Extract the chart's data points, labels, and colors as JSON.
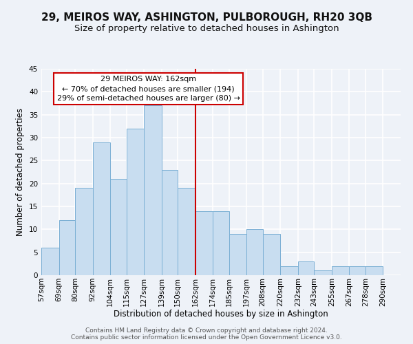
{
  "title": "29, MEIROS WAY, ASHINGTON, PULBOROUGH, RH20 3QB",
  "subtitle": "Size of property relative to detached houses in Ashington",
  "xlabel": "Distribution of detached houses by size in Ashington",
  "ylabel": "Number of detached properties",
  "bar_left_edges": [
    57,
    69,
    80,
    92,
    104,
    115,
    127,
    139,
    150,
    162,
    174,
    185,
    197,
    208,
    220,
    232,
    243,
    255,
    267,
    278
  ],
  "bar_heights": [
    6,
    12,
    19,
    29,
    21,
    32,
    37,
    23,
    19,
    14,
    14,
    9,
    10,
    9,
    2,
    3,
    1,
    2,
    2,
    2
  ],
  "bar_widths": [
    12,
    11,
    12,
    12,
    11,
    12,
    12,
    11,
    12,
    12,
    11,
    12,
    11,
    12,
    12,
    11,
    12,
    12,
    11,
    12
  ],
  "tick_labels": [
    "57sqm",
    "69sqm",
    "80sqm",
    "92sqm",
    "104sqm",
    "115sqm",
    "127sqm",
    "139sqm",
    "150sqm",
    "162sqm",
    "174sqm",
    "185sqm",
    "197sqm",
    "208sqm",
    "220sqm",
    "232sqm",
    "243sqm",
    "255sqm",
    "267sqm",
    "278sqm",
    "290sqm"
  ],
  "bar_color": "#c8ddf0",
  "bar_edge_color": "#7aafd4",
  "vline_x": 162,
  "vline_color": "#cc0000",
  "annotation_title": "29 MEIROS WAY: 162sqm",
  "annotation_line1": "← 70% of detached houses are smaller (194)",
  "annotation_line2": "29% of semi-detached houses are larger (80) →",
  "annotation_box_color": "#ffffff",
  "annotation_box_edge": "#cc0000",
  "ylim": [
    0,
    45
  ],
  "yticks": [
    0,
    5,
    10,
    15,
    20,
    25,
    30,
    35,
    40,
    45
  ],
  "footer1": "Contains HM Land Registry data © Crown copyright and database right 2024.",
  "footer2": "Contains public sector information licensed under the Open Government Licence v3.0.",
  "background_color": "#eef2f8",
  "grid_color": "#ffffff",
  "title_fontsize": 11,
  "subtitle_fontsize": 9.5,
  "axis_label_fontsize": 8.5,
  "tick_fontsize": 7.5,
  "annotation_fontsize": 8,
  "footer_fontsize": 6.5
}
